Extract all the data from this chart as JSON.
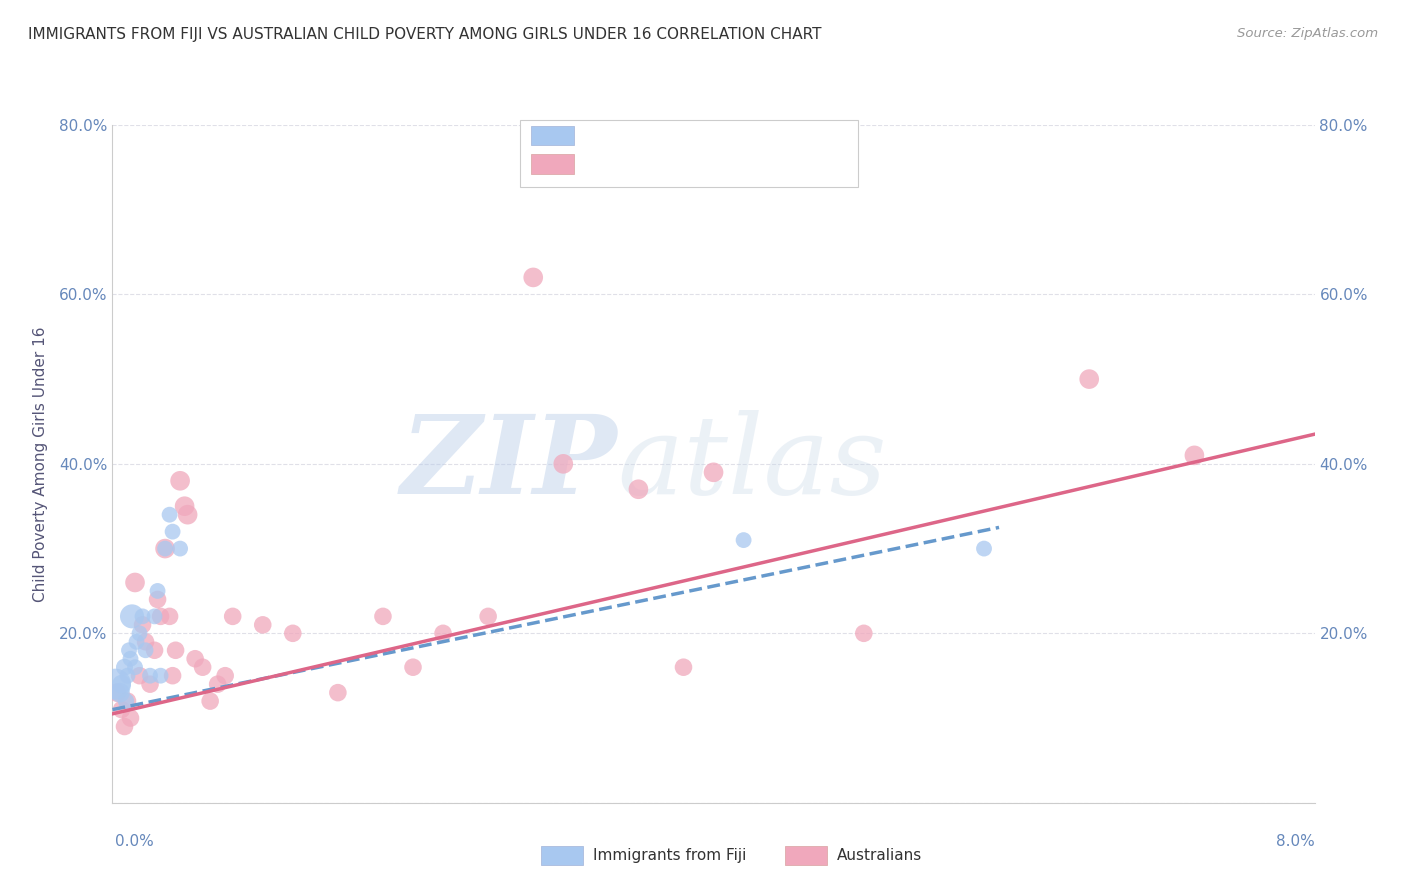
{
  "title": "IMMIGRANTS FROM FIJI VS AUSTRALIAN CHILD POVERTY AMONG GIRLS UNDER 16 CORRELATION CHART",
  "source": "Source: ZipAtlas.com",
  "ylabel": "Child Poverty Among Girls Under 16",
  "xlim": [
    0.0,
    8.0
  ],
  "ylim": [
    0.0,
    80.0
  ],
  "fiji_color": "#a8c8f0",
  "aus_color": "#f0a8bc",
  "fiji_line_color": "#6699cc",
  "aus_line_color": "#dd6688",
  "watermark_zip": "ZIP",
  "watermark_atlas": "atlas",
  "fiji_scatter_x": [
    0.02,
    0.05,
    0.06,
    0.08,
    0.09,
    0.1,
    0.11,
    0.12,
    0.13,
    0.15,
    0.16,
    0.18,
    0.2,
    0.22,
    0.25,
    0.28,
    0.3,
    0.32,
    0.35,
    0.38,
    0.4,
    0.45,
    4.2,
    5.8
  ],
  "fiji_scatter_y": [
    14,
    13,
    14,
    16,
    12,
    15,
    18,
    17,
    22,
    16,
    19,
    20,
    22,
    18,
    15,
    22,
    25,
    15,
    30,
    34,
    32,
    30,
    31,
    30
  ],
  "fiji_scatter_sizes": [
    500,
    200,
    180,
    150,
    140,
    130,
    130,
    130,
    300,
    130,
    130,
    130,
    130,
    130,
    130,
    130,
    130,
    130,
    130,
    130,
    130,
    130,
    130,
    130
  ],
  "aus_scatter_x": [
    0.03,
    0.06,
    0.08,
    0.1,
    0.12,
    0.15,
    0.18,
    0.2,
    0.22,
    0.25,
    0.28,
    0.3,
    0.32,
    0.35,
    0.38,
    0.4,
    0.42,
    0.45,
    0.48,
    0.5,
    0.55,
    0.6,
    0.65,
    0.7,
    0.75,
    0.8,
    1.0,
    1.2,
    1.5,
    1.8,
    2.0,
    2.2,
    2.5,
    2.8,
    3.0,
    3.5,
    3.8,
    4.0,
    5.0,
    6.5,
    7.2
  ],
  "aus_scatter_y": [
    13,
    11,
    9,
    12,
    10,
    26,
    15,
    21,
    19,
    14,
    18,
    24,
    22,
    30,
    22,
    15,
    18,
    38,
    35,
    34,
    17,
    16,
    12,
    14,
    15,
    22,
    21,
    20,
    13,
    22,
    16,
    20,
    22,
    62,
    40,
    37,
    16,
    39,
    20,
    50,
    41
  ],
  "aus_scatter_sizes": [
    180,
    160,
    160,
    160,
    160,
    200,
    160,
    160,
    160,
    160,
    160,
    160,
    160,
    200,
    160,
    160,
    160,
    200,
    200,
    200,
    160,
    160,
    160,
    160,
    160,
    160,
    160,
    160,
    160,
    160,
    160,
    160,
    160,
    200,
    200,
    200,
    160,
    200,
    160,
    200,
    200
  ],
  "fiji_line_x": [
    0.0,
    5.9
  ],
  "fiji_line_y": [
    11.0,
    32.5
  ],
  "aus_line_x": [
    0.0,
    8.0
  ],
  "aus_line_y": [
    10.5,
    43.5
  ],
  "background_color": "#ffffff",
  "grid_color": "#e0e0e8",
  "title_color": "#333333",
  "axis_label_color": "#555577",
  "tick_color": "#6688bb"
}
